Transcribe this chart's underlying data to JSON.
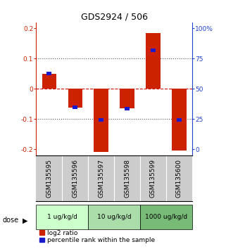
{
  "title": "GDS2924 / 506",
  "samples": [
    "GSM135595",
    "GSM135596",
    "GSM135597",
    "GSM135598",
    "GSM135599",
    "GSM135600"
  ],
  "log2_ratio": [
    0.05,
    -0.062,
    -0.21,
    -0.065,
    0.185,
    -0.205
  ],
  "percentile_rank_y": [
    0.05,
    -0.062,
    -0.103,
    -0.065,
    0.128,
    -0.103
  ],
  "ylim": [
    -0.22,
    0.22
  ],
  "yticks_left": [
    -0.2,
    -0.1,
    0.0,
    0.1,
    0.2
  ],
  "yticks_left_labels": [
    "-0.2",
    "-0.1",
    "0",
    "0.1",
    "0.2"
  ],
  "yticks_right_vals": [
    0,
    25,
    50,
    75,
    100
  ],
  "yticks_right_pos": [
    -0.2,
    -0.1,
    0.0,
    0.1,
    0.2
  ],
  "yticks_right_labels": [
    "0",
    "25",
    "50",
    "75",
    "100%"
  ],
  "red_color": "#cc2200",
  "blue_color": "#1a1acc",
  "hline_color": "#cc0000",
  "grid_color": "#555555",
  "left_axis_color": "#cc2200",
  "right_axis_color": "#2244cc",
  "sample_box_color": "#cccccc",
  "dose_boxes": [
    {
      "label": "1 ug/kg/d",
      "start": 0,
      "end": 2,
      "color": "#ccffcc"
    },
    {
      "label": "10 ug/kg/d",
      "start": 2,
      "end": 4,
      "color": "#aaddaa"
    },
    {
      "label": "1000 ug/kg/d",
      "start": 4,
      "end": 6,
      "color": "#77bb77"
    }
  ],
  "legend_red": "log2 ratio",
  "legend_blue": "percentile rank within the sample",
  "bg_color": "#ffffff",
  "title_fontsize": 9,
  "tick_fontsize": 6.5,
  "legend_fontsize": 6.5,
  "dose_fontsize": 6.5,
  "sample_fontsize": 6.5,
  "dose_label_fontsize": 7
}
